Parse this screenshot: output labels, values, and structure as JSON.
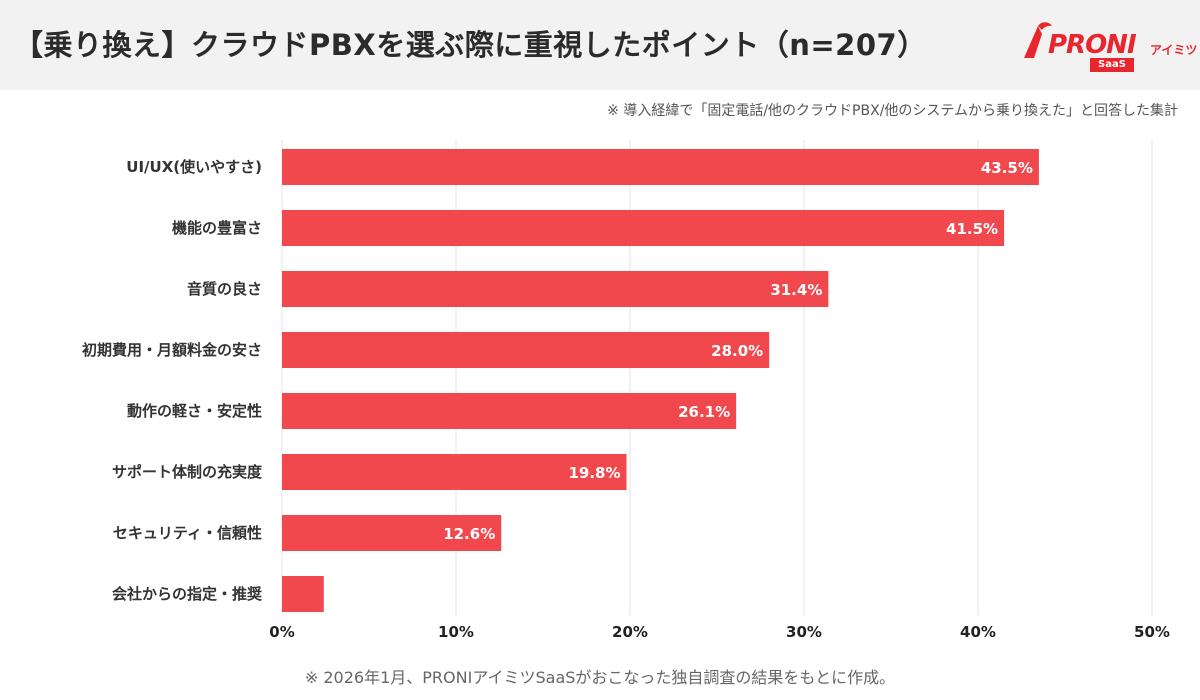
{
  "header": {
    "title": "【乗り換え】クラウドPBXを選ぶ際に重視したポイント（n=207）",
    "logo_text": "PRONI",
    "logo_sub": "アイミツ",
    "logo_badge": "SaaS"
  },
  "note": "※ 導入経緯で「固定電話/他のクラウドPBX/他のシステムから乗り換えた」と回答した集計",
  "footer": "※ 2026年1月、PRONIアイミツSaaSがおこなった独自調査の結果をもとに作成。",
  "colors": {
    "bar": "#f0484d",
    "grid": "#e3e3e3",
    "brand": "#e8262d"
  },
  "chart_data": {
    "type": "bar",
    "orientation": "horizontal",
    "categories": [
      "UI/UX(使いやすさ)",
      "機能の豊富さ",
      "音質の良さ",
      "初期費用・月額料金の安さ",
      "動作の軽さ・安定性",
      "サポート体制の充実度",
      "セキュリティ・信頼性",
      "会社からの指定・推奨"
    ],
    "values": [
      43.5,
      41.5,
      31.4,
      28.0,
      26.1,
      19.8,
      12.6,
      2.4
    ],
    "value_labels": [
      "43.5%",
      "41.5%",
      "31.4%",
      "28.0%",
      "26.1%",
      "19.8%",
      "12.6%",
      ""
    ],
    "xlim": [
      0,
      50
    ],
    "xticks": [
      0,
      10,
      20,
      30,
      40,
      50
    ],
    "xtick_labels": [
      "0%",
      "10%",
      "20%",
      "30%",
      "40%",
      "50%"
    ],
    "grid": true
  }
}
